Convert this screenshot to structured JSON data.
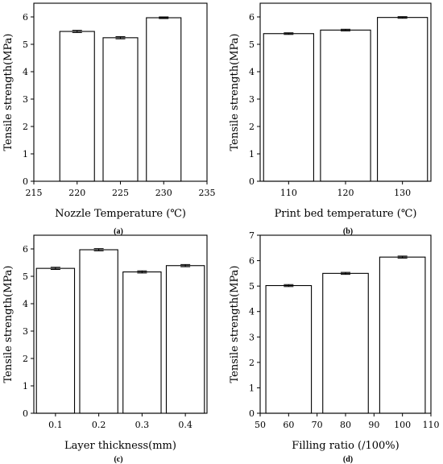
{
  "chart_data": [
    {
      "type": "bar",
      "panel": "(a)",
      "xlabel": "Nozzle Temperature (℃)",
      "ylabel": "Tensile strength(MPa)",
      "x_axis": "numeric",
      "xlim": [
        215,
        235
      ],
      "xticks": [
        215,
        220,
        225,
        230,
        235
      ],
      "ylim": [
        0,
        6.5
      ],
      "yticks": [
        0,
        1,
        2,
        3,
        4,
        5,
        6
      ],
      "categories": [
        220,
        225,
        230
      ],
      "bar_width": 4,
      "values": [
        5.47,
        5.24,
        5.97
      ],
      "errors": [
        0.04,
        0.04,
        0.03
      ]
    },
    {
      "type": "bar",
      "panel": "(b)",
      "xlabel": "Print bed temperature (℃)",
      "ylabel": "Tensile strength(MPa)",
      "x_axis": "categorical",
      "categories": [
        "110",
        "120",
        "130"
      ],
      "ylim": [
        0,
        6.5
      ],
      "yticks": [
        0,
        1,
        2,
        3,
        4,
        5,
        6
      ],
      "values": [
        5.39,
        5.52,
        5.98
      ],
      "errors": [
        0.03,
        0.03,
        0.03
      ]
    },
    {
      "type": "bar",
      "panel": "(c)",
      "xlabel": "Layer thickness(mm)",
      "ylabel": "Tensile strength(MPa)",
      "x_axis": "categorical",
      "categories": [
        "0.1",
        "0.2",
        "0.3",
        "0.4"
      ],
      "ylim": [
        0,
        6.5
      ],
      "yticks": [
        0,
        1,
        2,
        3,
        4,
        5,
        6
      ],
      "values": [
        5.29,
        5.97,
        5.16,
        5.39
      ],
      "errors": [
        0.04,
        0.04,
        0.04,
        0.04
      ]
    },
    {
      "type": "bar",
      "panel": "(d)",
      "xlabel": "Filling ratio (/100%)",
      "ylabel": "Tensile strength(MPa)",
      "x_axis": "numeric",
      "xlim": [
        50,
        110
      ],
      "xticks": [
        50,
        60,
        70,
        80,
        90,
        100,
        110
      ],
      "ylim": [
        0,
        7
      ],
      "yticks": [
        0,
        1,
        2,
        3,
        4,
        5,
        6,
        7
      ],
      "categories": [
        60,
        80,
        100
      ],
      "bar_width": 16,
      "values": [
        5.02,
        5.5,
        6.14
      ],
      "errors": [
        0.04,
        0.04,
        0.04
      ]
    }
  ]
}
